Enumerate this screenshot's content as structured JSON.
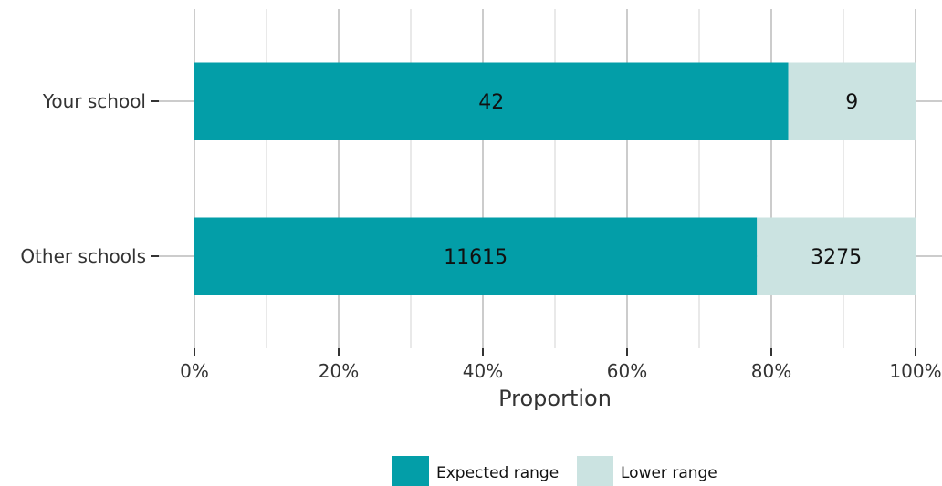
{
  "chart_data": {
    "type": "bar",
    "orientation": "horizontal",
    "stacked": "percent",
    "categories": [
      "Your school",
      "Other schools"
    ],
    "series": [
      {
        "name": "Expected range",
        "values": [
          42,
          11615
        ],
        "color": "#039ea8"
      },
      {
        "name": "Lower range",
        "values": [
          9,
          3275
        ],
        "color": "#cbe3e1"
      }
    ],
    "xlabel": "Proportion",
    "ylabel": "",
    "xlim": [
      0,
      1
    ],
    "x_ticks": [
      0,
      0.2,
      0.4,
      0.6,
      0.8,
      1.0
    ],
    "x_tick_labels": [
      "0%",
      "20%",
      "40%",
      "60%",
      "80%",
      "100%"
    ],
    "grid": true,
    "legend_position": "bottom"
  }
}
